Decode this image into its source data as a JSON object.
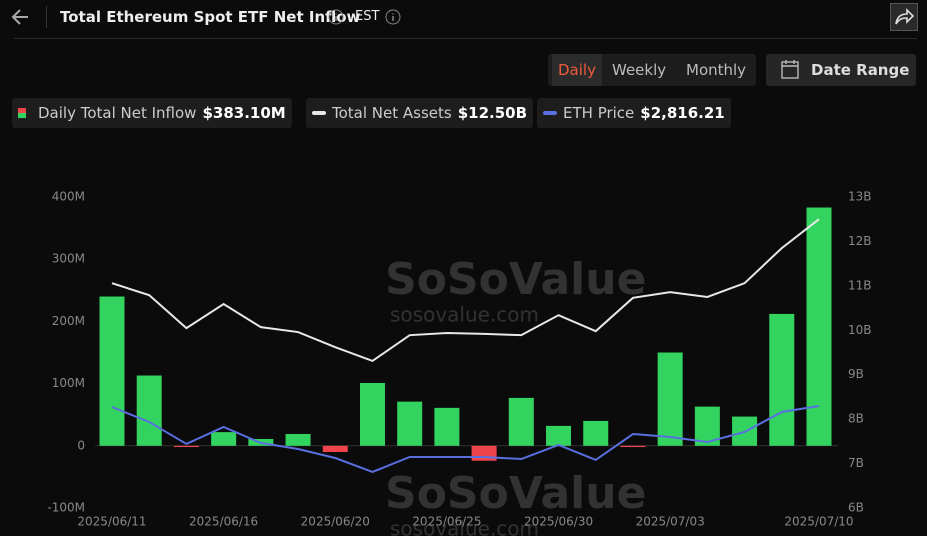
{
  "header": {
    "title": "Total Ethereum Spot ETF Net Inflow",
    "timezone": "EST"
  },
  "tabs": {
    "items": [
      "Daily",
      "Weekly",
      "Monthly"
    ],
    "active": 0,
    "date_range": "Date Range"
  },
  "watermark": {
    "brand": "SoSoValue",
    "url": "sosovalue.com"
  },
  "chart_data": {
    "type": "bar",
    "categories": [
      "2025/06/11",
      null,
      null,
      "2025/06/16",
      null,
      null,
      "2025/06/20",
      null,
      null,
      "2025/06/25",
      null,
      null,
      "2025/06/30",
      null,
      null,
      "2025/07/03",
      null,
      null,
      null,
      "2025/07/10"
    ],
    "series": [
      {
        "name": "Daily Total Net Inflow",
        "kind": "bar",
        "color": "#33d35f",
        "negative_color": "#f0444c",
        "legend_value": "$383.10M",
        "values": [
          240,
          113,
          -2,
          22,
          11,
          19,
          -10,
          101,
          71,
          61,
          -24,
          77,
          32,
          40,
          -2,
          150,
          63,
          47,
          212,
          383.1
        ]
      },
      {
        "name": "Total Net Assets",
        "kind": "line",
        "axis": "y2",
        "color": "#e8e8e8",
        "legend_value": "$12.50B",
        "values": [
          11.06,
          10.79,
          10.05,
          10.59,
          10.07,
          9.96,
          9.62,
          9.31,
          9.89,
          9.94,
          9.92,
          9.89,
          10.34,
          9.98,
          10.73,
          10.86,
          10.75,
          11.06,
          11.85,
          12.5
        ]
      },
      {
        "name": "ETH Price",
        "kind": "line",
        "axis": "y3",
        "color": "#5a6fe0",
        "legend_value": "$2,816.21",
        "values": [
          2807,
          2674,
          2479,
          2630,
          2488,
          2434,
          2354,
          2230,
          2363,
          2363,
          2363,
          2345,
          2470,
          2337,
          2567,
          2541,
          2496,
          2585,
          2763,
          2816.21
        ]
      }
    ],
    "ylim": [
      -100,
      400
    ],
    "yticks": [
      {
        "value": -100,
        "label": "-100M"
      },
      0,
      {
        "value": 100,
        "label": "100M"
      },
      {
        "value": 200,
        "label": "200M"
      },
      {
        "value": 300,
        "label": "300M"
      },
      {
        "value": 400,
        "label": "400M"
      }
    ],
    "y2lim": [
      6,
      13
    ],
    "y2ticks": [
      {
        "value": 6,
        "label": "6B"
      },
      {
        "value": 7,
        "label": "7B"
      },
      {
        "value": 8,
        "label": "8B"
      },
      {
        "value": 9,
        "label": "9B"
      },
      {
        "value": 10,
        "label": "10B"
      },
      {
        "value": 11,
        "label": "11B"
      },
      {
        "value": 12,
        "label": "12B"
      },
      {
        "value": 13,
        "label": "13B"
      }
    ],
    "y3lim": [
      1910,
      4672
    ]
  }
}
